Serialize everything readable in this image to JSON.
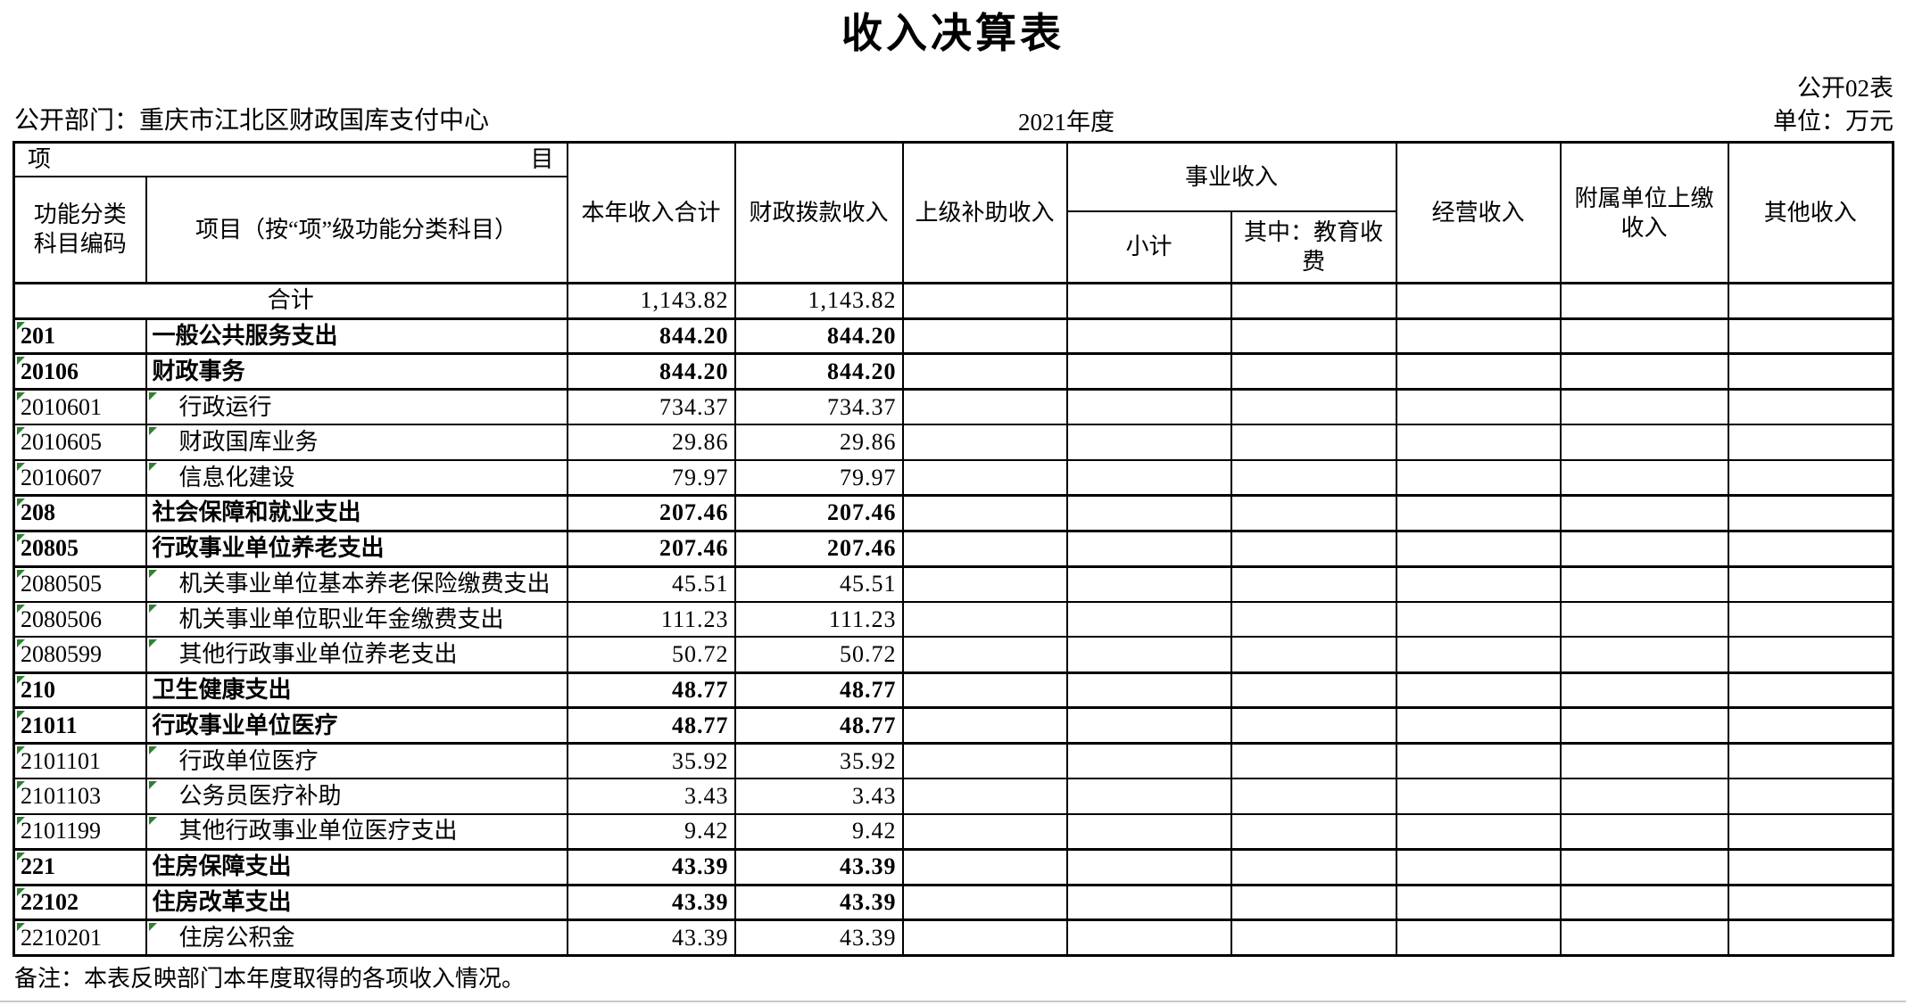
{
  "title": "收入决算表",
  "meta": {
    "sheet_label": "公开02表",
    "department": "公开部门：重庆市江北区财政国库支付中心",
    "year": "2021年度",
    "unit": "单位：万元"
  },
  "note": "备注：本表反映部门本年度取得的各项收入情况。",
  "colors": {
    "flag_triangle_green": "#2d8230",
    "border_black": "#000000"
  },
  "table": {
    "header": {
      "item_left": "项",
      "item_right": "目",
      "code_line1": "功能分类",
      "code_line2": "科目编码",
      "name_col": "项目（按“项”级功能分类科目）",
      "col_total": "本年收入合计",
      "col_fiscal": "财政拨款收入",
      "col_higher": "上级补助收入",
      "group_business": "事业收入",
      "col_subtotal": "小计",
      "col_edu": "其中：教育收费",
      "col_operating": "经营收入",
      "col_affiliate": "附属单位上缴收入",
      "col_other": "其他收入"
    },
    "rows": [
      {
        "level": "total",
        "code": "",
        "name": "合计",
        "values": [
          "1,143.82",
          "1,143.82",
          "",
          "",
          "",
          "",
          "",
          ""
        ]
      },
      {
        "level": "parent",
        "code": "201",
        "name": "一般公共服务支出",
        "values": [
          "844.20",
          "844.20",
          "",
          "",
          "",
          "",
          "",
          ""
        ]
      },
      {
        "level": "parent",
        "code": "20106",
        "name": "财政事务",
        "values": [
          "844.20",
          "844.20",
          "",
          "",
          "",
          "",
          "",
          ""
        ]
      },
      {
        "level": "child",
        "code": "2010601",
        "name": "行政运行",
        "values": [
          "734.37",
          "734.37",
          "",
          "",
          "",
          "",
          "",
          ""
        ]
      },
      {
        "level": "child",
        "code": "2010605",
        "name": "财政国库业务",
        "values": [
          "29.86",
          "29.86",
          "",
          "",
          "",
          "",
          "",
          ""
        ]
      },
      {
        "level": "child",
        "code": "2010607",
        "name": "信息化建设",
        "values": [
          "79.97",
          "79.97",
          "",
          "",
          "",
          "",
          "",
          ""
        ]
      },
      {
        "level": "parent",
        "code": "208",
        "name": "社会保障和就业支出",
        "values": [
          "207.46",
          "207.46",
          "",
          "",
          "",
          "",
          "",
          ""
        ]
      },
      {
        "level": "parent",
        "code": "20805",
        "name": "行政事业单位养老支出",
        "values": [
          "207.46",
          "207.46",
          "",
          "",
          "",
          "",
          "",
          ""
        ]
      },
      {
        "level": "child",
        "code": "2080505",
        "name": "机关事业单位基本养老保险缴费支出",
        "values": [
          "45.51",
          "45.51",
          "",
          "",
          "",
          "",
          "",
          ""
        ]
      },
      {
        "level": "child",
        "code": "2080506",
        "name": "机关事业单位职业年金缴费支出",
        "values": [
          "111.23",
          "111.23",
          "",
          "",
          "",
          "",
          "",
          ""
        ]
      },
      {
        "level": "child",
        "code": "2080599",
        "name": "其他行政事业单位养老支出",
        "values": [
          "50.72",
          "50.72",
          "",
          "",
          "",
          "",
          "",
          ""
        ]
      },
      {
        "level": "parent",
        "code": "210",
        "name": "卫生健康支出",
        "values": [
          "48.77",
          "48.77",
          "",
          "",
          "",
          "",
          "",
          ""
        ]
      },
      {
        "level": "parent",
        "code": "21011",
        "name": "行政事业单位医疗",
        "values": [
          "48.77",
          "48.77",
          "",
          "",
          "",
          "",
          "",
          ""
        ]
      },
      {
        "level": "child",
        "code": "2101101",
        "name": "行政单位医疗",
        "values": [
          "35.92",
          "35.92",
          "",
          "",
          "",
          "",
          "",
          ""
        ]
      },
      {
        "level": "child",
        "code": "2101103",
        "name": "公务员医疗补助",
        "values": [
          "3.43",
          "3.43",
          "",
          "",
          "",
          "",
          "",
          ""
        ]
      },
      {
        "level": "child",
        "code": "2101199",
        "name": "其他行政事业单位医疗支出",
        "values": [
          "9.42",
          "9.42",
          "",
          "",
          "",
          "",
          "",
          ""
        ]
      },
      {
        "level": "parent",
        "code": "221",
        "name": "住房保障支出",
        "values": [
          "43.39",
          "43.39",
          "",
          "",
          "",
          "",
          "",
          ""
        ]
      },
      {
        "level": "parent",
        "code": "22102",
        "name": "住房改革支出",
        "values": [
          "43.39",
          "43.39",
          "",
          "",
          "",
          "",
          "",
          ""
        ]
      },
      {
        "level": "child",
        "code": "2210201",
        "name": "住房公积金",
        "values": [
          "43.39",
          "43.39",
          "",
          "",
          "",
          "",
          "",
          ""
        ]
      }
    ]
  }
}
